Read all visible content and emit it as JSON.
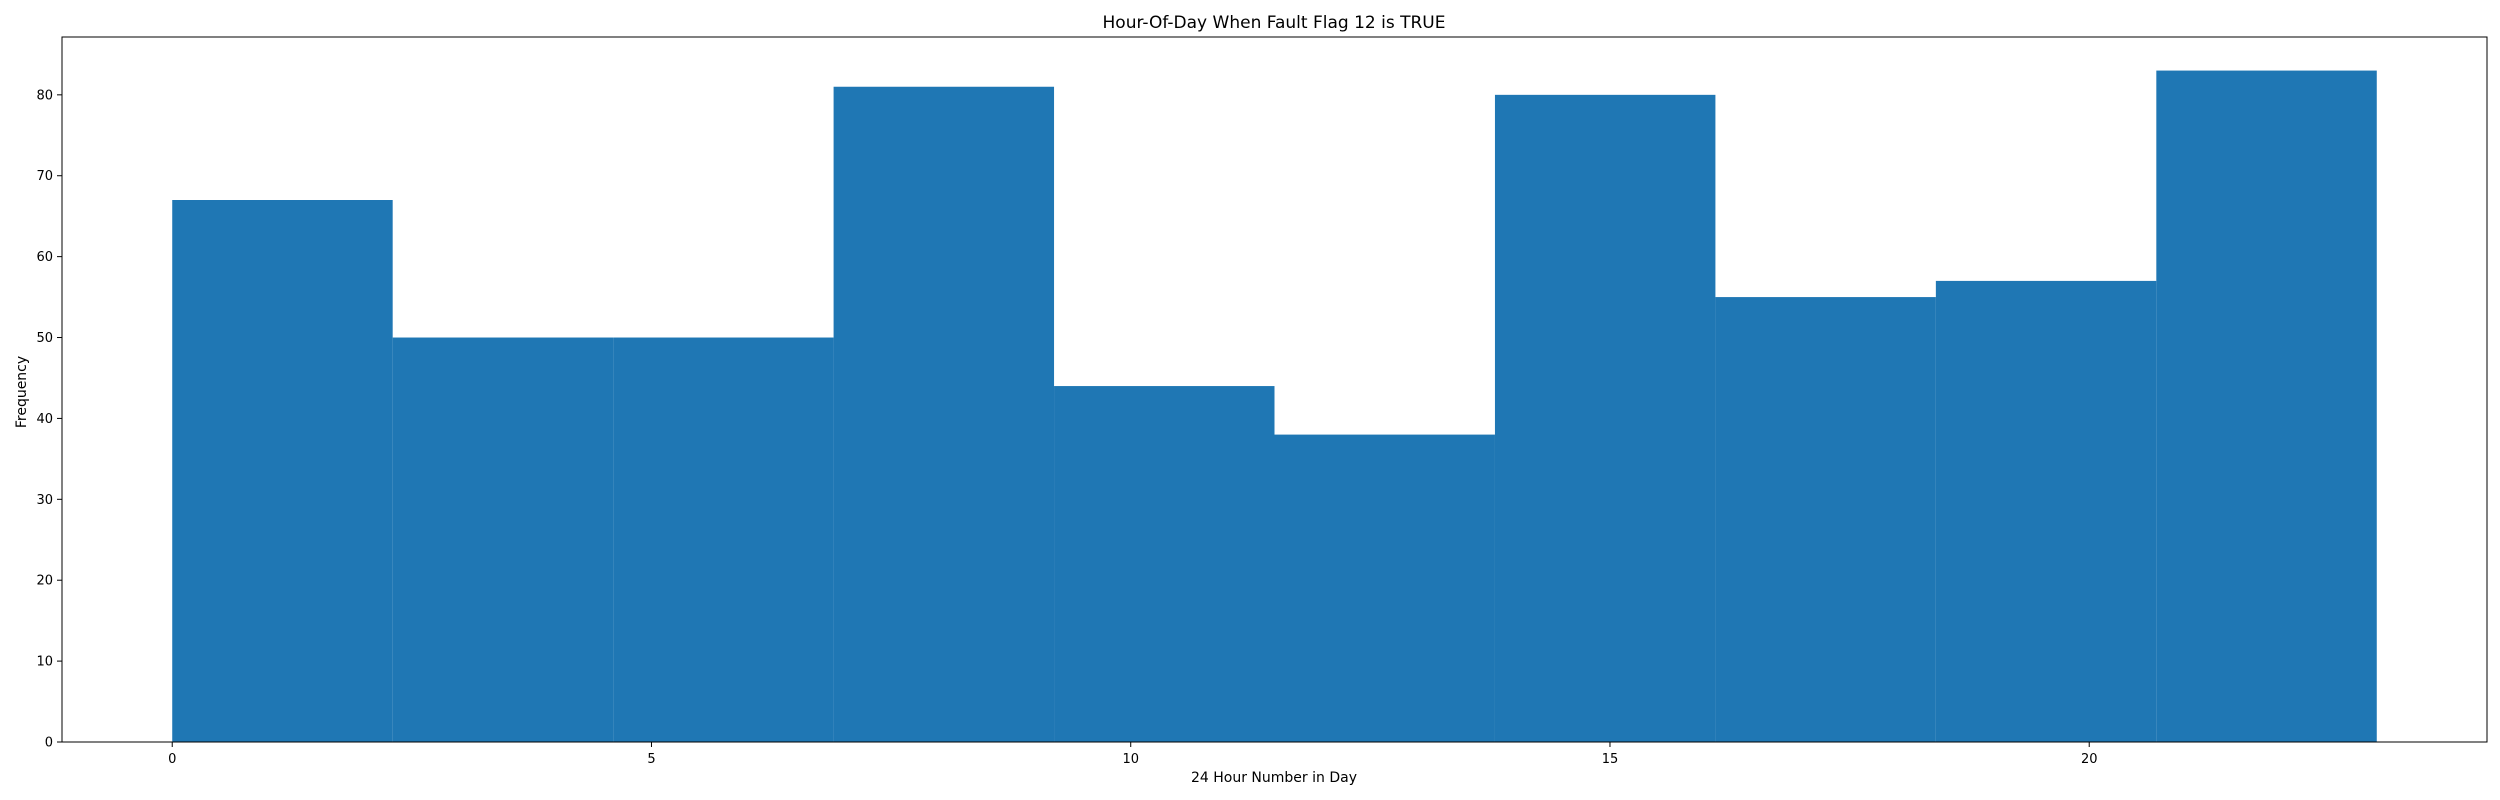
{
  "chart_data": {
    "type": "bar",
    "title": "Hour-Of-Day When Fault Flag 12 is TRUE",
    "xlabel": "24 Hour Number in Day",
    "ylabel": "Frequency",
    "bar_color": "#1f77b4",
    "xlim": [
      -1.15,
      24.15
    ],
    "ylim": [
      0,
      87.15
    ],
    "x_ticks": [
      0,
      5,
      10,
      15,
      20
    ],
    "y_ticks": [
      0,
      10,
      20,
      30,
      40,
      50,
      60,
      70,
      80
    ],
    "bins": [
      {
        "start": 0.0,
        "end": 2.3,
        "value": 67
      },
      {
        "start": 2.3,
        "end": 4.6,
        "value": 50
      },
      {
        "start": 4.6,
        "end": 6.9,
        "value": 50
      },
      {
        "start": 6.9,
        "end": 9.2,
        "value": 81
      },
      {
        "start": 9.2,
        "end": 11.5,
        "value": 44
      },
      {
        "start": 11.5,
        "end": 13.8,
        "value": 38
      },
      {
        "start": 13.8,
        "end": 16.1,
        "value": 80
      },
      {
        "start": 16.1,
        "end": 18.4,
        "value": 55
      },
      {
        "start": 18.4,
        "end": 20.7,
        "value": 57
      },
      {
        "start": 20.7,
        "end": 23.0,
        "value": 83
      }
    ],
    "grid": false,
    "legend": "none"
  }
}
